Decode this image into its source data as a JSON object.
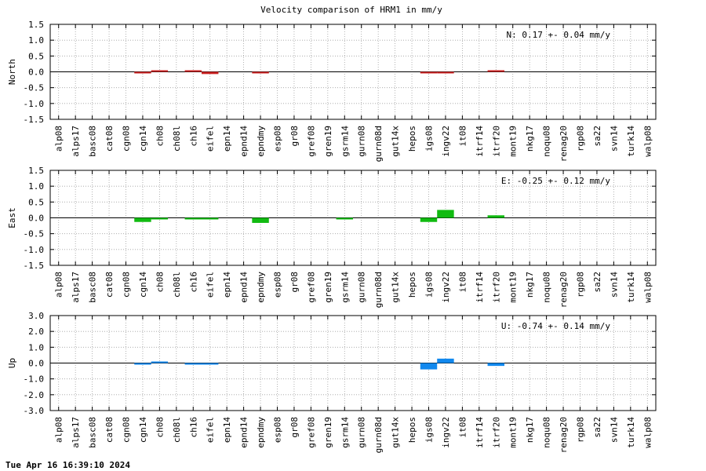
{
  "title": "Velocity comparison of HRM1 in mm/y",
  "timestamp": "Tue Apr 16 16:39:10 2024",
  "chart_data": [
    {
      "type": "bar",
      "ylabel": "North",
      "ylim": [
        -1.5,
        1.5
      ],
      "yticks": [
        -1.5,
        -1.0,
        -0.5,
        0.0,
        0.5,
        1.0,
        1.5
      ],
      "ytick_labels": [
        "-1.5",
        "-1.0",
        "-0.5",
        "0.0",
        "0.5",
        "1.0",
        "1.5"
      ],
      "annotation": "N:   0.17 +-  0.04 mm/y",
      "color": "#cc2222",
      "grid": true,
      "categories": [
        "alp08",
        "alps17",
        "basc08",
        "cat08",
        "cgn08",
        "cgn14",
        "ch08",
        "ch08l",
        "ch16",
        "eifel",
        "epn14",
        "epnd14",
        "epndmy",
        "esp08",
        "gr08",
        "gref08",
        "gren19",
        "gsrm14",
        "gurn08",
        "gurn08d",
        "gut14x",
        "hepos",
        "igs08",
        "ingv22",
        "it08",
        "itrf14",
        "itrf20",
        "mont19",
        "nkg17",
        "noqu08",
        "renag20",
        "rgp08",
        "sa22",
        "svn14",
        "turk14",
        "walp08"
      ],
      "values": [
        0,
        0,
        0,
        0,
        0,
        -0.05,
        0.02,
        0,
        0.02,
        -0.07,
        0,
        0,
        -0.02,
        0,
        0,
        0,
        0,
        0,
        0,
        0,
        0,
        0,
        -0.02,
        -0.03,
        0,
        0,
        0.05,
        0,
        0,
        0,
        0,
        0,
        0,
        0,
        0,
        0
      ]
    },
    {
      "type": "bar",
      "ylabel": "East",
      "ylim": [
        -1.5,
        1.5
      ],
      "yticks": [
        -1.5,
        -1.0,
        -0.5,
        0.0,
        0.5,
        1.0,
        1.5
      ],
      "ytick_labels": [
        "-1.5",
        "-1.0",
        "-0.5",
        "0.0",
        "0.5",
        "1.0",
        "1.5"
      ],
      "annotation": "E:  -0.25 +-  0.12 mm/y",
      "color": "#11bb11",
      "grid": true,
      "categories": [
        "alp08",
        "alps17",
        "basc08",
        "cat08",
        "cgn08",
        "cgn14",
        "ch08",
        "ch08l",
        "ch16",
        "eifel",
        "epn14",
        "epnd14",
        "epndmy",
        "esp08",
        "gr08",
        "gref08",
        "gren19",
        "gsrm14",
        "gurn08",
        "gurn08d",
        "gut14x",
        "hepos",
        "igs08",
        "ingv22",
        "it08",
        "itrf14",
        "itrf20",
        "mont19",
        "nkg17",
        "noqu08",
        "renag20",
        "rgp08",
        "sa22",
        "svn14",
        "turk14",
        "walp08"
      ],
      "values": [
        0,
        0,
        0,
        0,
        0,
        -0.13,
        -0.05,
        0,
        -0.05,
        -0.05,
        0,
        0,
        -0.16,
        0,
        0,
        0,
        0,
        -0.05,
        0,
        0,
        0,
        0,
        -0.13,
        0.25,
        0,
        0,
        0.08,
        0,
        0,
        0,
        0,
        0,
        0,
        0,
        0,
        0
      ]
    },
    {
      "type": "bar",
      "ylabel": "Up",
      "ylim": [
        -3.0,
        3.0
      ],
      "yticks": [
        -3.0,
        -2.0,
        -1.0,
        0.0,
        1.0,
        2.0,
        3.0
      ],
      "ytick_labels": [
        "-3.0",
        "-2.0",
        "-1.0",
        "0.0",
        "1.0",
        "2.0",
        "3.0"
      ],
      "annotation": "U:  -0.74 +-  0.14 mm/y",
      "color": "#1188ee",
      "grid": true,
      "categories": [
        "alp08",
        "alps17",
        "basc08",
        "cat08",
        "cgn08",
        "cgn14",
        "ch08",
        "ch08l",
        "ch16",
        "eifel",
        "epn14",
        "epnd14",
        "epndmy",
        "esp08",
        "gr08",
        "gref08",
        "gren19",
        "gsrm14",
        "gurn08",
        "gurn08d",
        "gut14x",
        "hepos",
        "igs08",
        "ingv22",
        "it08",
        "itrf14",
        "itrf20",
        "mont19",
        "nkg17",
        "noqu08",
        "renag20",
        "rgp08",
        "sa22",
        "svn14",
        "turk14",
        "walp08"
      ],
      "values": [
        0,
        0,
        0,
        0,
        0,
        -0.1,
        0.08,
        0,
        -0.05,
        -0.05,
        0,
        0,
        0,
        0,
        0,
        0,
        0,
        0,
        0,
        0,
        0,
        0,
        -0.4,
        0.28,
        0,
        0,
        -0.18,
        0,
        0,
        0,
        0,
        0,
        0,
        0,
        0,
        0
      ]
    }
  ]
}
